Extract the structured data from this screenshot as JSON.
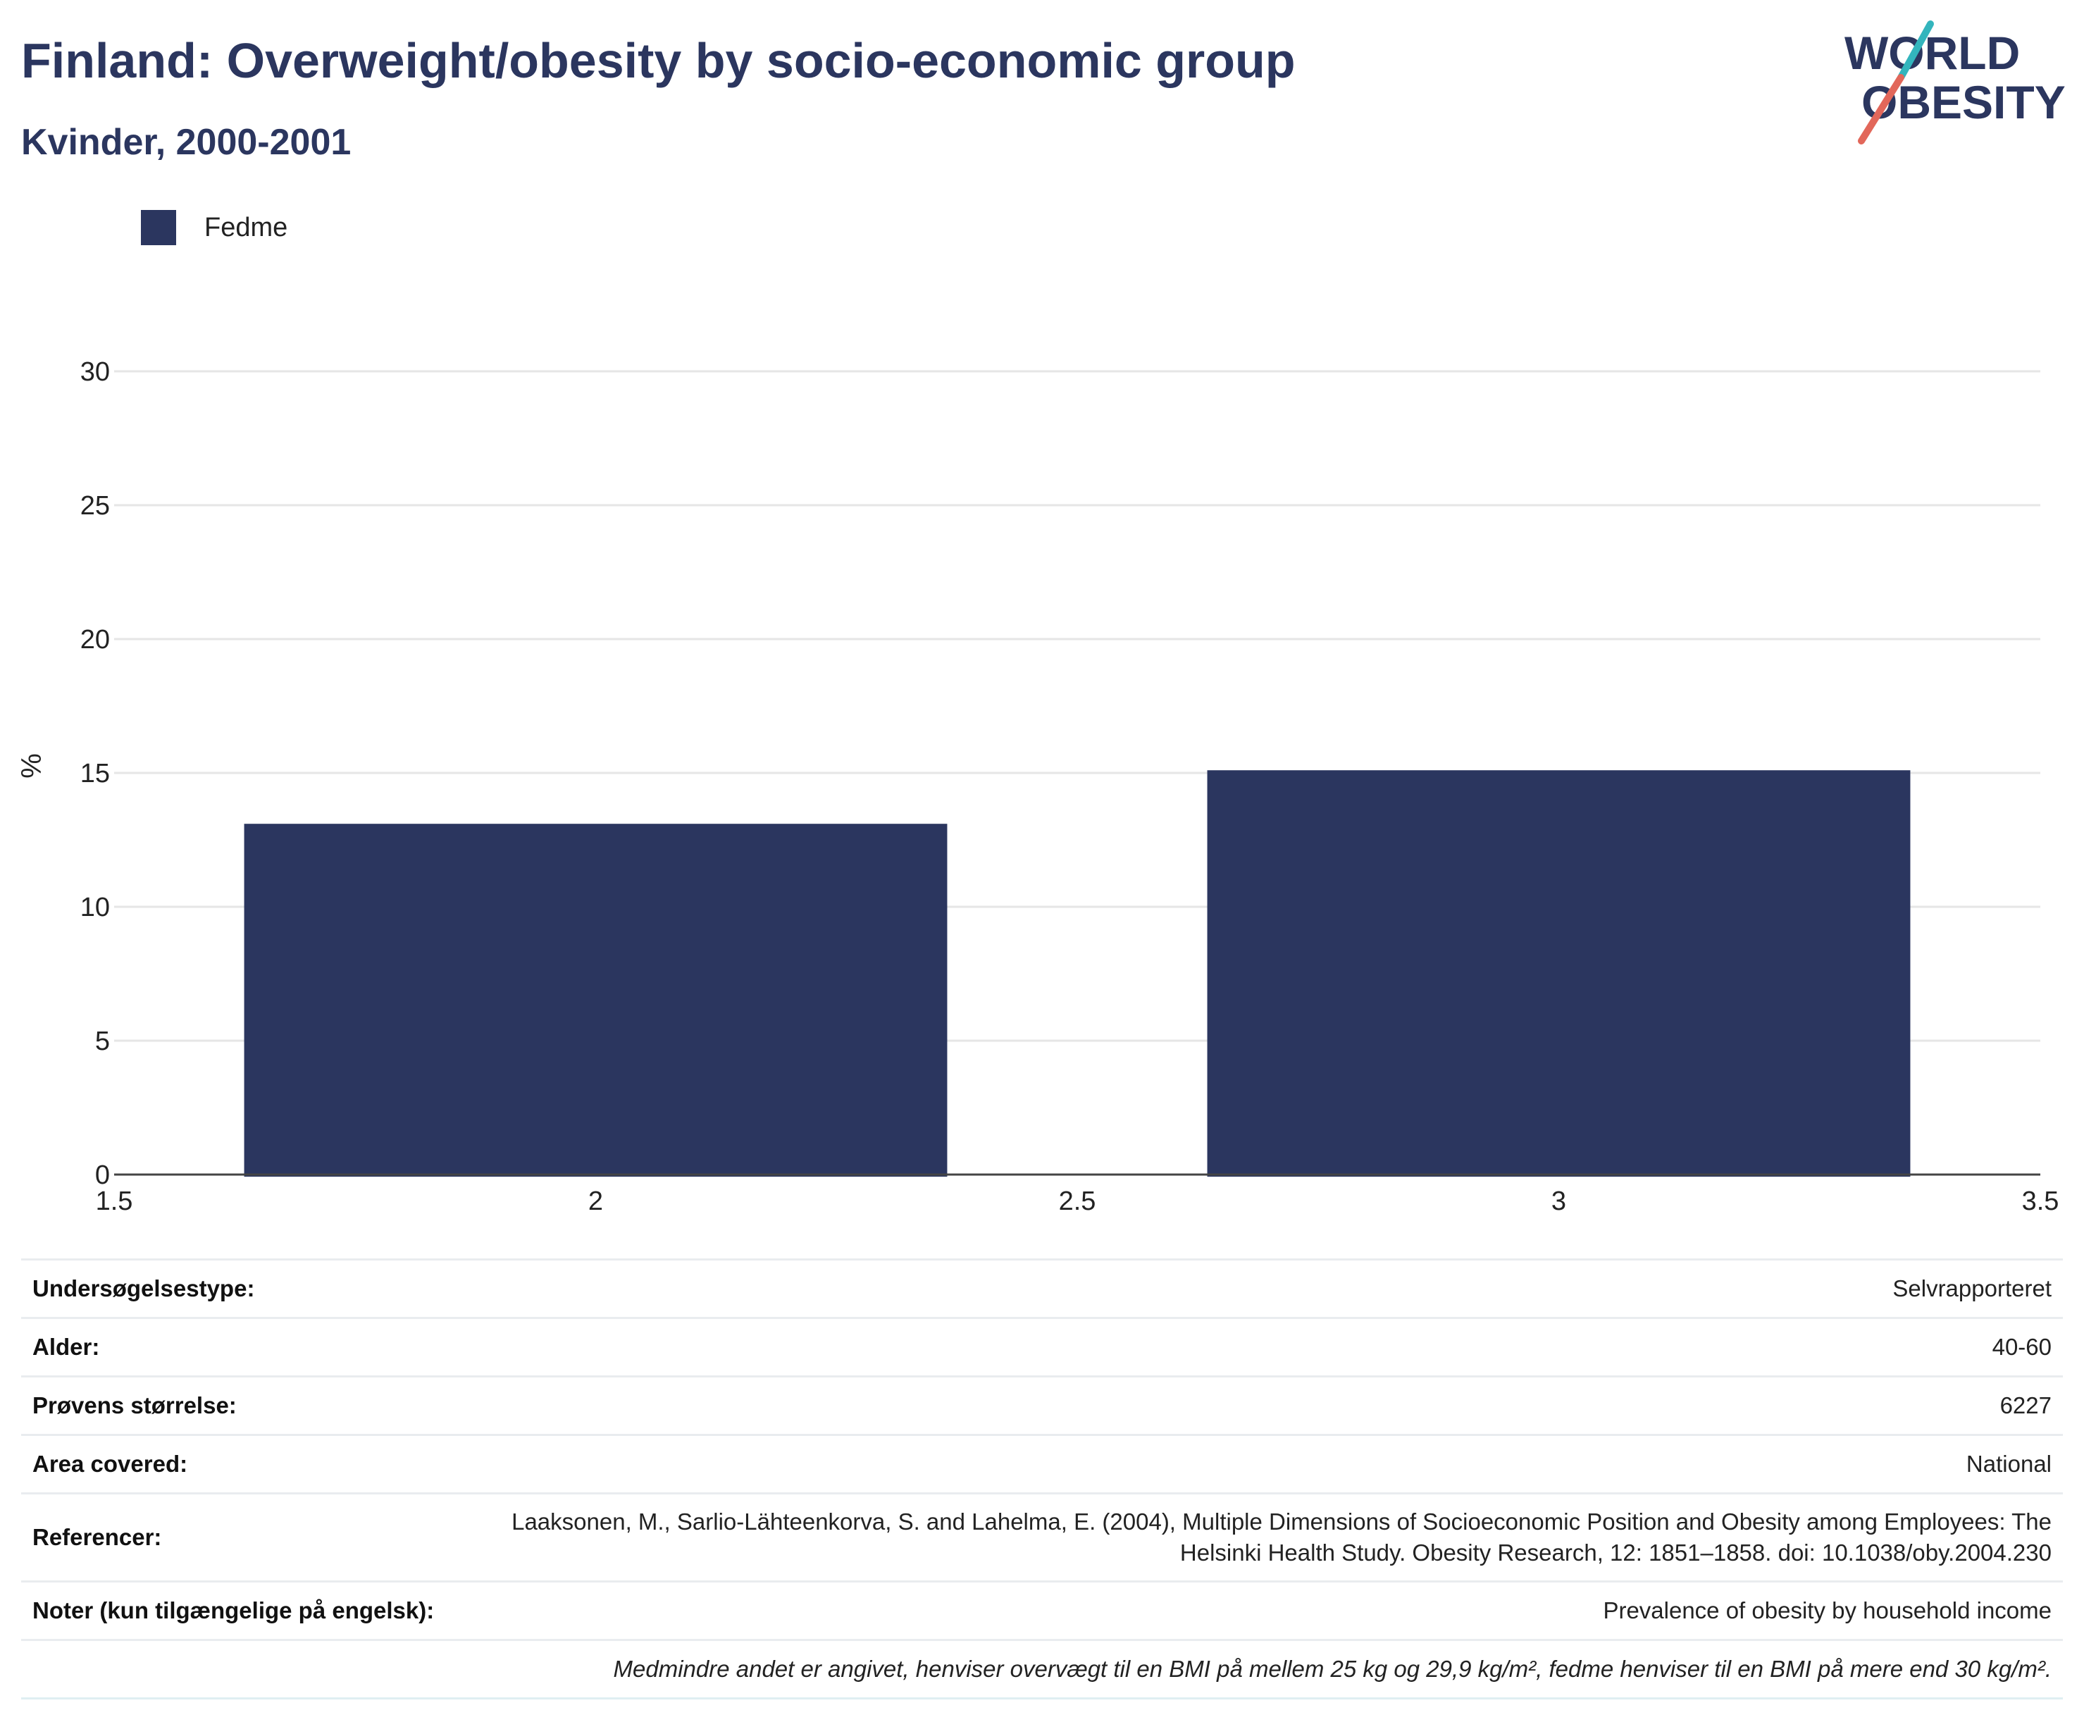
{
  "title": "Finland: Overweight/obesity by socio-economic group",
  "subtitle": "Kvinder, 2000-2001",
  "logo": {
    "line1": "WORLD",
    "line2": "OBESITY",
    "accent_teal": "#33b5bd",
    "accent_coral": "#e2675a",
    "text_color": "#2b365f"
  },
  "chart_data": {
    "type": "bar",
    "series": [
      {
        "name": "Fedme",
        "color": "#2b365f",
        "x": [
          2,
          3
        ],
        "values": [
          13.1,
          15.1
        ]
      }
    ],
    "bar_width": 0.73,
    "xlim": [
      1.5,
      3.5
    ],
    "xticks": [
      "1.5",
      "2",
      "2.5",
      "3",
      "3.5"
    ],
    "ylim": [
      0,
      30
    ],
    "yticks": [
      "0",
      "5",
      "10",
      "15",
      "20",
      "25",
      "30"
    ],
    "ylabel": "%",
    "xlabel": "",
    "grid": true,
    "legend_position": "top-left"
  },
  "info": [
    {
      "key": "Undersøgelsestype:",
      "value": "Selvrapporteret"
    },
    {
      "key": "Alder:",
      "value": "40-60"
    },
    {
      "key": "Prøvens størrelse:",
      "value": "6227"
    },
    {
      "key": "Area covered:",
      "value": "National"
    },
    {
      "key": "Referencer:",
      "value": "Laaksonen, M., Sarlio-Lähteenkorva, S. and Lahelma, E. (2004), Multiple Dimensions of Socioeconomic Position and Obesity among Employees: The Helsinki Health Study. Obesity Research, 12: 1851–1858. doi: 10.1038/oby.2004.230"
    },
    {
      "key": "Noter (kun tilgængelige på engelsk):",
      "value": "Prevalence of obesity by household income"
    }
  ],
  "footnote": "Medmindre andet er angivet, henviser overvægt til en BMI på mellem 25 kg og 29,9 kg/m², fedme henviser til en BMI på mere end 30 kg/m²."
}
